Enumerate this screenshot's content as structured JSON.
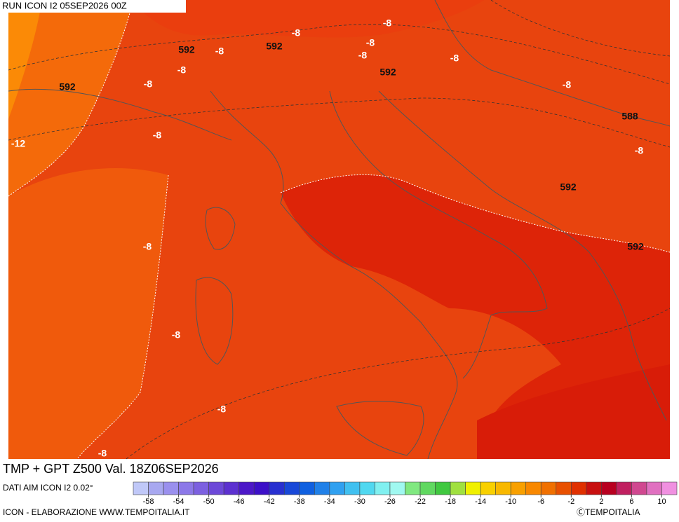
{
  "header": "RUN ICON I2 05SEP2026 00Z",
  "title": "TMP + GPT Z500 Val. 18Z06SEP2026",
  "source": "DATI AIM ICON I2 0.02°",
  "footer": "ICON - ELABORAZIONE WWW.TEMPOITALIA.IT",
  "copyright": "ⒸTEMPOITALIA",
  "contour_labels": [
    -8,
    -8,
    592,
    -8,
    592,
    -8,
    -8,
    -8,
    592,
    -8,
    592,
    -8,
    -8,
    588,
    -8,
    -12,
    -8,
    592,
    -8,
    592,
    -8,
    -8,
    -8
  ],
  "colorbar": {
    "colors": [
      "#c0c8f8",
      "#a8a8f0",
      "#9a90ee",
      "#8c78e8",
      "#7c60e0",
      "#6c48d8",
      "#5c30d0",
      "#4c18c8",
      "#3c10c8",
      "#2830d0",
      "#1848d8",
      "#1060e0",
      "#2080e8",
      "#30a0f0",
      "#40c0f0",
      "#50d8f0",
      "#80f0f0",
      "#a0f8f0",
      "#80e880",
      "#60d860",
      "#40c840",
      "#a0e040",
      "#f0f000",
      "#f8d000",
      "#f8b800",
      "#f8a000",
      "#f88800",
      "#f07000",
      "#e85000",
      "#e03000",
      "#c81010",
      "#b80020",
      "#c02060",
      "#d04890",
      "#e070c0",
      "#f090e0"
    ],
    "ticks": [
      -58,
      -54,
      -50,
      -46,
      -42,
      -38,
      -34,
      -30,
      -26,
      -22,
      -18,
      -14,
      -10,
      -6,
      -2,
      2,
      6,
      10
    ]
  }
}
